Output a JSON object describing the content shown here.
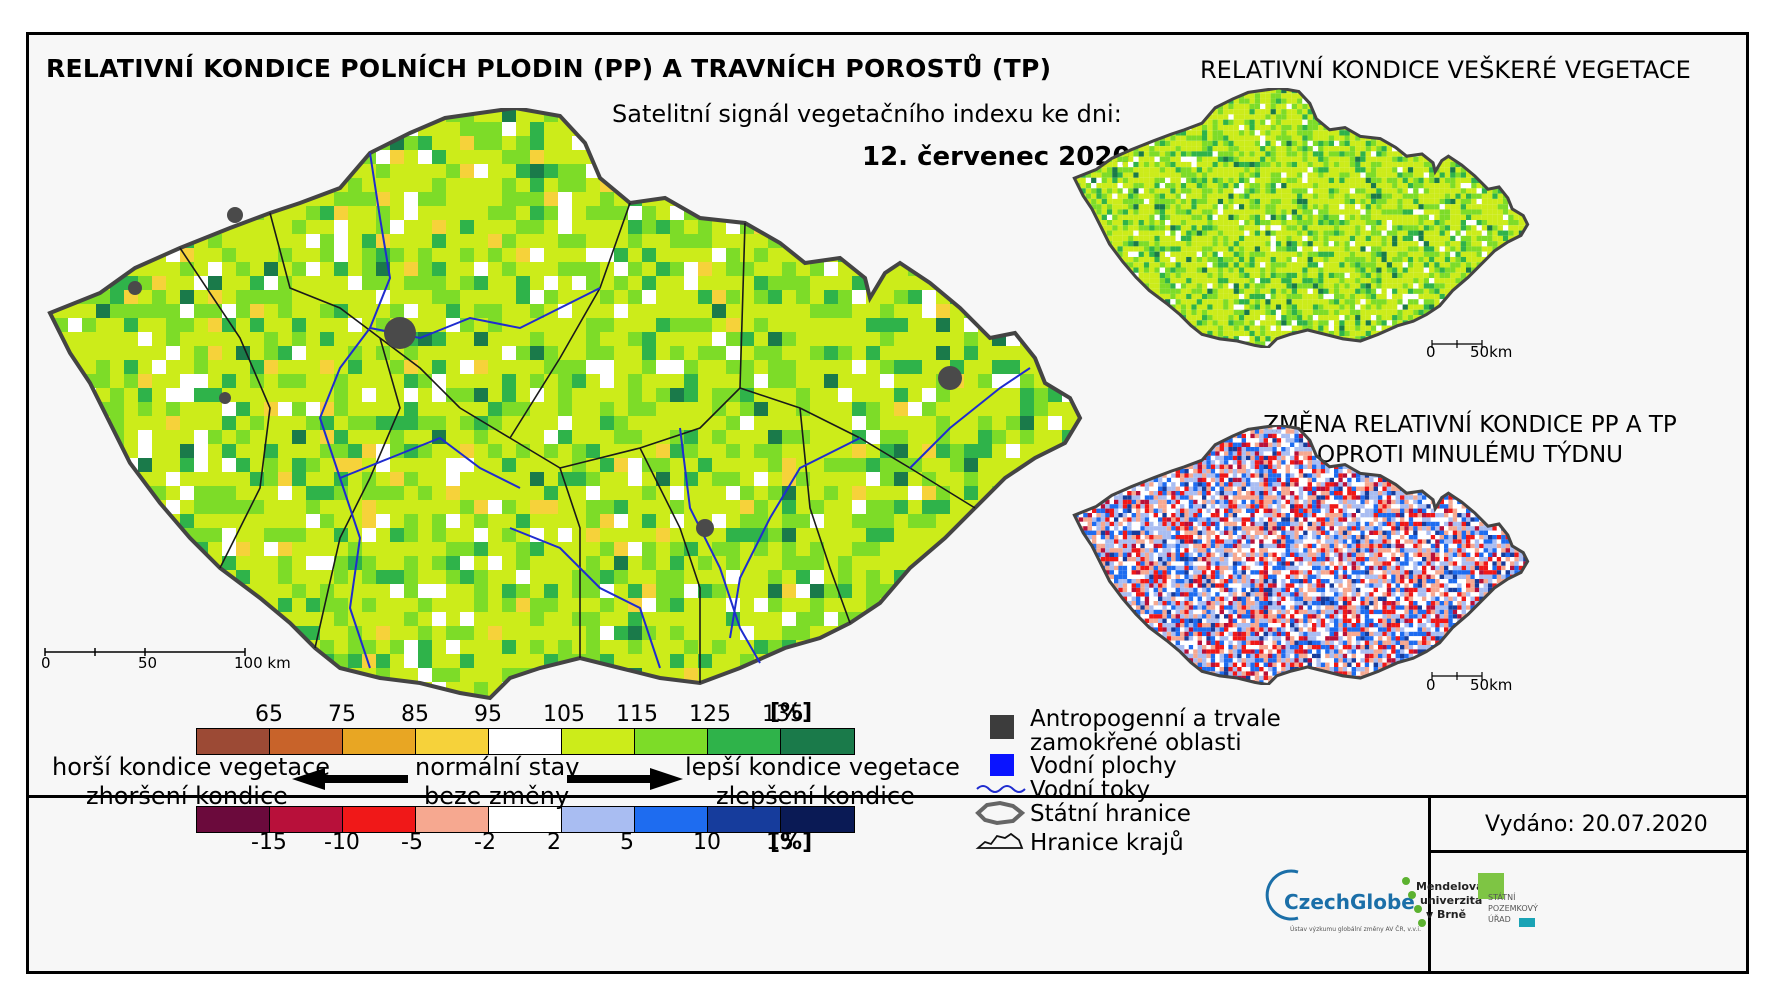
{
  "main_title": "RELATIVNÍ KONDICE POLNÍCH PLODIN (PP) A TRAVNÍCH POROSTŮ (TP)",
  "subtitle": "Satelitní signál vegetačního indexu ke dni:",
  "date": "12. červenec 2020",
  "veg_title": "RELATIVNÍ KONDICE VEŠKERÉ VEGETACE",
  "change_title_line1": "ZMĚNA RELATIVNÍ KONDICE PP A TP",
  "change_title_line2": "OPROTI MINULÉMU TÝDNU",
  "main_scale": {
    "labels": [
      "0",
      "50",
      "100 km"
    ]
  },
  "small_scale": {
    "labels": [
      "0",
      "50km"
    ]
  },
  "condition_legend": {
    "ticks": [
      "65",
      "75",
      "85",
      "95",
      "105",
      "115",
      "125",
      "135"
    ],
    "unit": "[%]",
    "colors": [
      "#9c4a35",
      "#c8632a",
      "#e8a623",
      "#f6d23a",
      "#ffffff",
      "#ccec1a",
      "#7ddc28",
      "#2fb34a",
      "#1a7a4a"
    ]
  },
  "change_legend": {
    "ticks": [
      "-15",
      "-10",
      "-5",
      "-2",
      "2",
      "5",
      "10",
      "15"
    ],
    "unit": "[%]",
    "colors": [
      "#6b0a3c",
      "#b8103a",
      "#f01818",
      "#f6a890",
      "#ffffff",
      "#a9bdf2",
      "#1e6cf0",
      "#163c9c",
      "#0a1a55"
    ]
  },
  "legend_text": {
    "worse_condition": "horší kondice vegetace",
    "worsening": "zhoršení kondice",
    "normal_state": "normální stav",
    "no_change": "beze změny",
    "better_condition": "lepší kondice vegetace",
    "improvement": "zlepšení kondice"
  },
  "map_legend": {
    "anthropogenic_line1": "Antropogenní a trvale",
    "anthropogenic_line2": "zamokřené oblasti",
    "water_areas": "Vodní plochy",
    "rivers": "Vodní toky",
    "state_border": "Státní hranice",
    "region_border": "Hranice krajů"
  },
  "issued": "Vydáno: 20.07.2020",
  "logos": {
    "czechglobe": "CzechGlobe",
    "czechglobe_sub": "Ústav výzkumu globální změny AV ČR, v.v.i.",
    "mendel_line1": "Mendelova",
    "mendel_line2": "univerzita",
    "mendel_line3": "v Brně",
    "spu_line1": "STÁTNÍ",
    "spu_line2": "POZEMKOVÝ",
    "spu_line3": "ÚŘAD"
  }
}
